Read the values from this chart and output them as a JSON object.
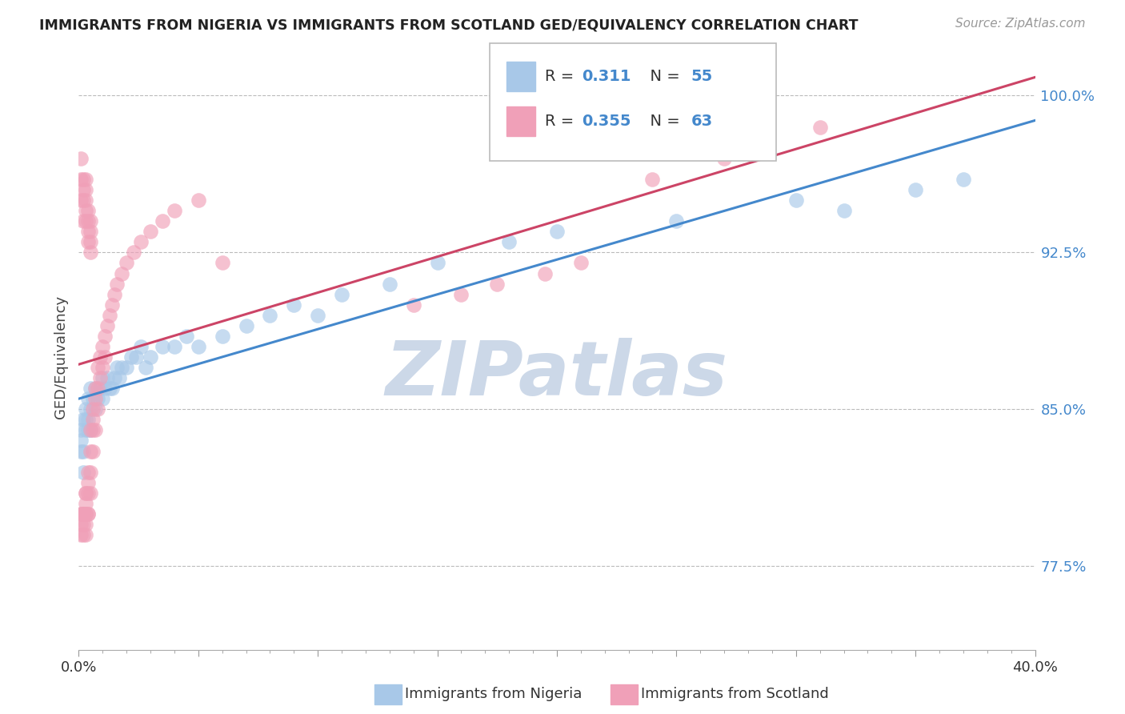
{
  "title": "IMMIGRANTS FROM NIGERIA VS IMMIGRANTS FROM SCOTLAND GED/EQUIVALENCY CORRELATION CHART",
  "source": "Source: ZipAtlas.com",
  "ylabel": "GED/Equivalency",
  "xlim": [
    0.0,
    0.4
  ],
  "ylim": [
    0.735,
    1.015
  ],
  "y_ticks": [
    0.775,
    0.85,
    0.925,
    1.0
  ],
  "y_tick_labels": [
    "77.5%",
    "85.0%",
    "92.5%",
    "100.0%"
  ],
  "nigeria_color": "#A8C8E8",
  "scotland_color": "#F0A0B8",
  "nigeria_line_color": "#4488CC",
  "scotland_line_color": "#CC4466",
  "background_color": "#ffffff",
  "grid_color": "#bbbbbb",
  "watermark_text": "ZIPatlas",
  "watermark_color": "#ccd8e8",
  "legend_label_nigeria": "Immigrants from Nigeria",
  "legend_label_scotland": "Immigrants from Scotland",
  "nigeria_R": "0.311",
  "nigeria_N": "55",
  "scotland_R": "0.355",
  "scotland_N": "63",
  "nigeria_x": [
    0.001,
    0.001,
    0.001,
    0.002,
    0.002,
    0.002,
    0.003,
    0.003,
    0.003,
    0.004,
    0.004,
    0.004,
    0.005,
    0.005,
    0.005,
    0.006,
    0.007,
    0.007,
    0.008,
    0.009,
    0.01,
    0.01,
    0.011,
    0.012,
    0.013,
    0.014,
    0.015,
    0.016,
    0.017,
    0.018,
    0.02,
    0.022,
    0.024,
    0.026,
    0.028,
    0.03,
    0.035,
    0.04,
    0.045,
    0.05,
    0.06,
    0.07,
    0.08,
    0.09,
    0.1,
    0.11,
    0.13,
    0.15,
    0.18,
    0.2,
    0.25,
    0.3,
    0.32,
    0.35,
    0.37
  ],
  "nigeria_y": [
    0.84,
    0.835,
    0.83,
    0.845,
    0.83,
    0.82,
    0.85,
    0.845,
    0.84,
    0.855,
    0.845,
    0.84,
    0.86,
    0.85,
    0.84,
    0.855,
    0.86,
    0.85,
    0.855,
    0.86,
    0.865,
    0.855,
    0.86,
    0.865,
    0.86,
    0.86,
    0.865,
    0.87,
    0.865,
    0.87,
    0.87,
    0.875,
    0.875,
    0.88,
    0.87,
    0.875,
    0.88,
    0.88,
    0.885,
    0.88,
    0.885,
    0.89,
    0.895,
    0.9,
    0.895,
    0.905,
    0.91,
    0.92,
    0.93,
    0.935,
    0.94,
    0.95,
    0.945,
    0.955,
    0.96
  ],
  "scotland_x": [
    0.001,
    0.001,
    0.001,
    0.001,
    0.002,
    0.002,
    0.002,
    0.002,
    0.002,
    0.003,
    0.003,
    0.003,
    0.003,
    0.003,
    0.003,
    0.003,
    0.004,
    0.004,
    0.004,
    0.004,
    0.004,
    0.005,
    0.005,
    0.005,
    0.005,
    0.006,
    0.006,
    0.006,
    0.006,
    0.007,
    0.007,
    0.007,
    0.008,
    0.008,
    0.008,
    0.009,
    0.009,
    0.01,
    0.01,
    0.011,
    0.011,
    0.012,
    0.013,
    0.014,
    0.015,
    0.016,
    0.018,
    0.02,
    0.023,
    0.026,
    0.03,
    0.035,
    0.04,
    0.05,
    0.06,
    0.14,
    0.16,
    0.175,
    0.195,
    0.21,
    0.24,
    0.27,
    0.31
  ],
  "scotland_y": [
    0.8,
    0.8,
    0.795,
    0.79,
    0.8,
    0.8,
    0.8,
    0.795,
    0.79,
    0.81,
    0.81,
    0.805,
    0.8,
    0.8,
    0.795,
    0.79,
    0.82,
    0.815,
    0.81,
    0.8,
    0.8,
    0.84,
    0.83,
    0.82,
    0.81,
    0.85,
    0.845,
    0.84,
    0.83,
    0.86,
    0.855,
    0.84,
    0.87,
    0.86,
    0.85,
    0.875,
    0.865,
    0.88,
    0.87,
    0.885,
    0.875,
    0.89,
    0.895,
    0.9,
    0.905,
    0.91,
    0.915,
    0.92,
    0.925,
    0.93,
    0.935,
    0.94,
    0.945,
    0.95,
    0.92,
    0.9,
    0.905,
    0.91,
    0.915,
    0.92,
    0.96,
    0.97,
    0.985
  ],
  "scotland_x_high": [
    0.001,
    0.001,
    0.001,
    0.002,
    0.002,
    0.002,
    0.002,
    0.003,
    0.003,
    0.003,
    0.003,
    0.003,
    0.004,
    0.004,
    0.004,
    0.004,
    0.005,
    0.005,
    0.005,
    0.005
  ],
  "scotland_y_high": [
    0.95,
    0.96,
    0.97,
    0.94,
    0.95,
    0.955,
    0.96,
    0.94,
    0.945,
    0.95,
    0.955,
    0.96,
    0.93,
    0.935,
    0.94,
    0.945,
    0.925,
    0.93,
    0.935,
    0.94
  ]
}
